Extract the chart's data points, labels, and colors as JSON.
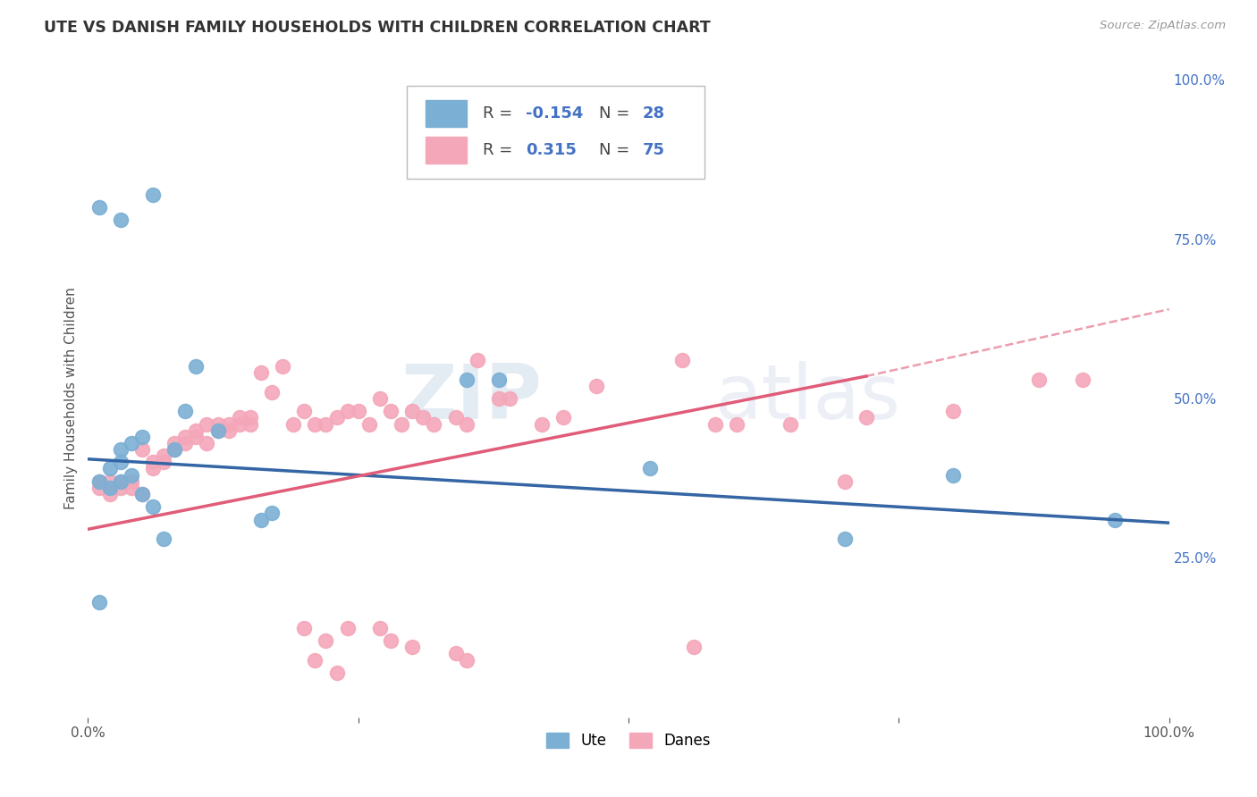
{
  "title": "UTE VS DANISH FAMILY HOUSEHOLDS WITH CHILDREN CORRELATION CHART",
  "source": "Source: ZipAtlas.com",
  "ylabel": "Family Households with Children",
  "xlim": [
    0,
    1
  ],
  "ylim": [
    0,
    1
  ],
  "xtick_positions": [
    0,
    0.25,
    0.5,
    0.75,
    1.0
  ],
  "xticklabels": [
    "0.0%",
    "",
    "",
    "",
    "100.0%"
  ],
  "yticks_right": [
    0.25,
    0.5,
    0.75,
    1.0
  ],
  "yticklabels_right": [
    "25.0%",
    "50.0%",
    "75.0%",
    "100.0%"
  ],
  "ute_color": "#7bafd4",
  "danes_color": "#f4a7b9",
  "ute_line_color": "#3465a4",
  "danes_line_color": "#e05c78",
  "ute_r": -0.154,
  "ute_n": 28,
  "danes_r": 0.315,
  "danes_n": 75,
  "background_color": "#ffffff",
  "grid_color": "#dddddd",
  "right_tick_color": "#4472c4",
  "ute_x": [
    0.01,
    0.01,
    0.02,
    0.02,
    0.03,
    0.03,
    0.03,
    0.04,
    0.04,
    0.05,
    0.05,
    0.06,
    0.07,
    0.08,
    0.09,
    0.1,
    0.12,
    0.16,
    0.17,
    0.35,
    0.38,
    0.52,
    0.7,
    0.8,
    0.95,
    0.01,
    0.03,
    0.06
  ],
  "ute_y": [
    0.37,
    0.18,
    0.39,
    0.36,
    0.42,
    0.4,
    0.37,
    0.38,
    0.43,
    0.35,
    0.44,
    0.33,
    0.28,
    0.42,
    0.48,
    0.55,
    0.45,
    0.31,
    0.32,
    0.53,
    0.53,
    0.39,
    0.28,
    0.38,
    0.31,
    0.8,
    0.78,
    0.82
  ],
  "danes_x": [
    0.01,
    0.01,
    0.02,
    0.02,
    0.03,
    0.03,
    0.04,
    0.04,
    0.05,
    0.05,
    0.06,
    0.06,
    0.07,
    0.07,
    0.08,
    0.08,
    0.09,
    0.09,
    0.1,
    0.1,
    0.11,
    0.11,
    0.12,
    0.12,
    0.13,
    0.13,
    0.14,
    0.14,
    0.15,
    0.15,
    0.16,
    0.17,
    0.18,
    0.19,
    0.2,
    0.21,
    0.22,
    0.23,
    0.24,
    0.25,
    0.26,
    0.27,
    0.28,
    0.29,
    0.3,
    0.31,
    0.32,
    0.34,
    0.35,
    0.36,
    0.38,
    0.39,
    0.42,
    0.44,
    0.47,
    0.55,
    0.58,
    0.6,
    0.65,
    0.7,
    0.72,
    0.8,
    0.88,
    0.92,
    0.27,
    0.28,
    0.3,
    0.34,
    0.35,
    0.56,
    0.2,
    0.21,
    0.22,
    0.23,
    0.24
  ],
  "danes_y": [
    0.36,
    0.37,
    0.37,
    0.35,
    0.37,
    0.36,
    0.36,
    0.37,
    0.35,
    0.42,
    0.4,
    0.39,
    0.41,
    0.4,
    0.42,
    0.43,
    0.44,
    0.43,
    0.45,
    0.44,
    0.46,
    0.43,
    0.46,
    0.45,
    0.45,
    0.46,
    0.46,
    0.47,
    0.47,
    0.46,
    0.54,
    0.51,
    0.55,
    0.46,
    0.48,
    0.46,
    0.46,
    0.47,
    0.48,
    0.48,
    0.46,
    0.5,
    0.48,
    0.46,
    0.48,
    0.47,
    0.46,
    0.47,
    0.46,
    0.56,
    0.5,
    0.5,
    0.46,
    0.47,
    0.52,
    0.56,
    0.46,
    0.46,
    0.46,
    0.37,
    0.47,
    0.48,
    0.53,
    0.53,
    0.14,
    0.12,
    0.11,
    0.1,
    0.09,
    0.11,
    0.14,
    0.09,
    0.12,
    0.07,
    0.14
  ],
  "legend_r_color": "#4472c4",
  "legend_n_color": "#4472c4"
}
